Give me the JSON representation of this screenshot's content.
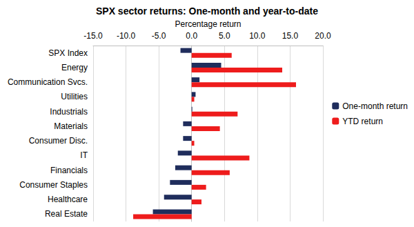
{
  "chart_data": {
    "type": "bar",
    "orientation": "horizontal",
    "title": "SPX sector returns: One-month and year-to-date",
    "x_label": "Percentage return",
    "categories": [
      "SPX Index",
      "Energy",
      "Communication Svcs.",
      "Utilities",
      "Industrials",
      "Materials",
      "Consumer Disc.",
      "IT",
      "Financials",
      "Consumer Staples",
      "Healthcare",
      "Real Estate"
    ],
    "series": [
      {
        "name": "One-month return",
        "color": "#1f2d5c",
        "values": [
          -1.7,
          4.5,
          1.2,
          0.6,
          0.1,
          -1.3,
          -1.3,
          -2.1,
          -2.5,
          -3.3,
          -4.2,
          -5.9
        ]
      },
      {
        "name": "YTD return",
        "color": "#ee1c1c",
        "values": [
          6.1,
          13.8,
          15.9,
          0.4,
          7.0,
          4.3,
          0.4,
          8.8,
          5.8,
          2.2,
          1.5,
          -8.9
        ]
      }
    ],
    "xlim": [
      -15,
      20
    ],
    "xticks": [
      {
        "value": -15,
        "label": "-15.0"
      },
      {
        "value": -10,
        "label": "-10.0"
      },
      {
        "value": -5,
        "label": "-5.0"
      },
      {
        "value": 0,
        "label": "0.0"
      },
      {
        "value": 5,
        "label": "5.0"
      },
      {
        "value": 10,
        "label": "10.0"
      },
      {
        "value": 15,
        "label": "15.0"
      },
      {
        "value": 20,
        "label": "20.0"
      }
    ],
    "grid": true,
    "legend": "right"
  }
}
